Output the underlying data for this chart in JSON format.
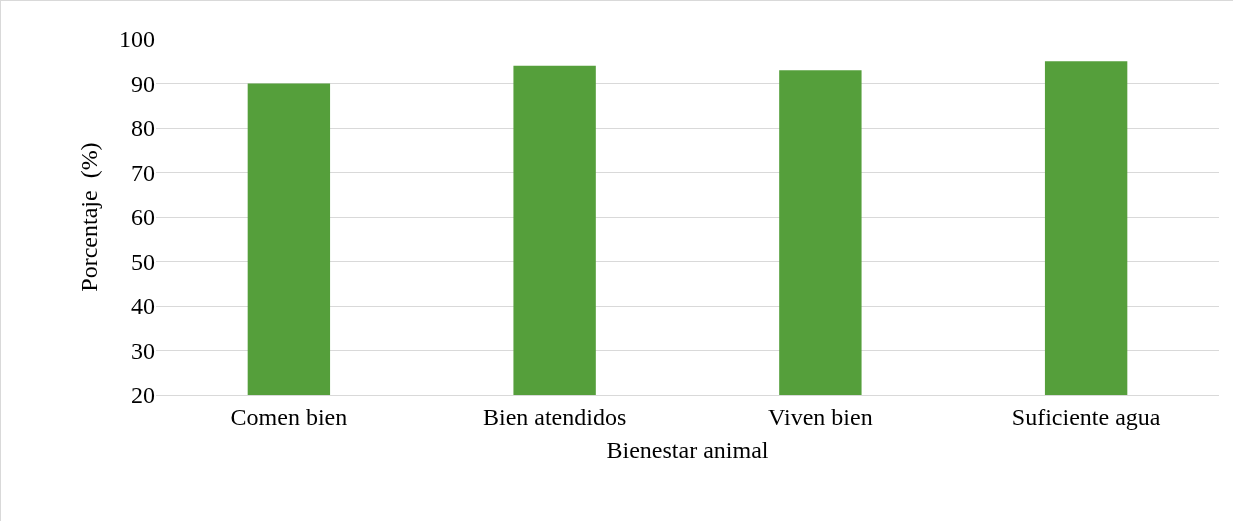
{
  "chart_data": {
    "type": "bar",
    "xlabel": "Bienestar animal",
    "ylabel": "Porcentaje  (%)",
    "categories": [
      "Comen bien",
      "Bien atendidos",
      "Viven bien",
      "Suficiente agua"
    ],
    "values": [
      90,
      94,
      93,
      95
    ],
    "color": "#559f3b",
    "ylim": [
      20,
      100
    ],
    "yticks": [
      20,
      30,
      40,
      50,
      60,
      70,
      80,
      90,
      100
    ],
    "grid": "y"
  }
}
